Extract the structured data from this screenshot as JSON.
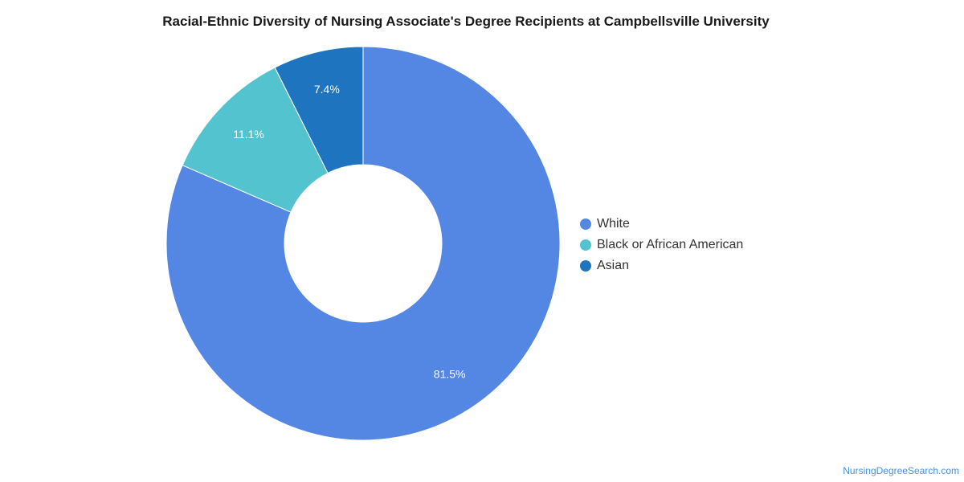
{
  "chart_data": {
    "type": "pie",
    "variant": "donut",
    "title": "Racial-Ethnic Diversity of Nursing Associate's Degree Recipients at Campbellsville University",
    "categories": [
      "White",
      "Black or African American",
      "Asian"
    ],
    "values": [
      81.5,
      11.1,
      7.4
    ],
    "data_labels": [
      "81.5%",
      "11.1%",
      "7.4%"
    ],
    "colors": [
      "#5486e4",
      "#52c3cf",
      "#1f74bf"
    ],
    "legend_position": "right"
  },
  "watermark": "NursingDegreeSearch.com"
}
